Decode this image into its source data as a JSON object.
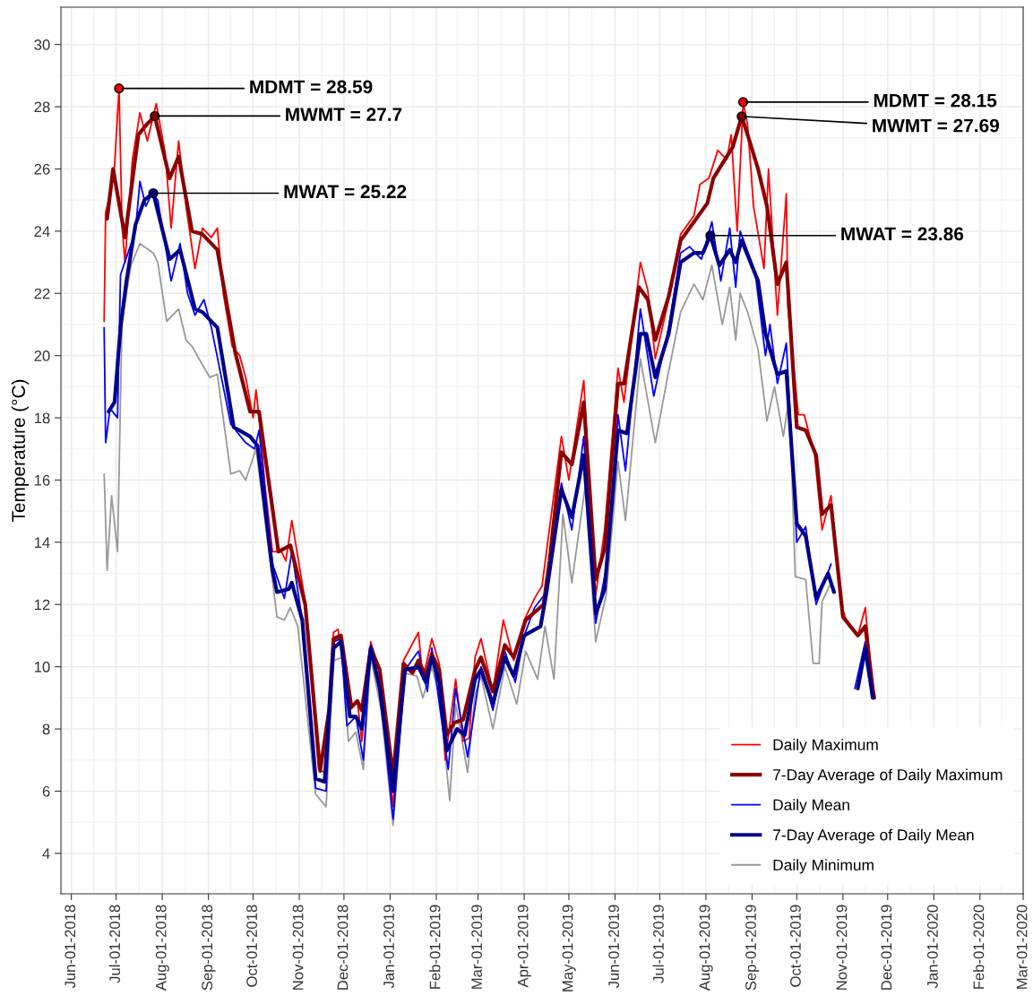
{
  "chart_data": {
    "type": "line",
    "ylabel": "Temperature (°C)",
    "xlim": [
      "2018-05-25",
      "2020-03-01"
    ],
    "ylim": [
      2.7,
      31.2
    ],
    "yticks": [
      4,
      6,
      8,
      10,
      12,
      14,
      16,
      18,
      20,
      22,
      24,
      26,
      28,
      30
    ],
    "xticks": [
      {
        "value": "2018-06-01",
        "label": "Jun-01-2018"
      },
      {
        "value": "2018-07-01",
        "label": "Jul-01-2018"
      },
      {
        "value": "2018-08-01",
        "label": "Aug-01-2018"
      },
      {
        "value": "2018-09-01",
        "label": "Sep-01-2018"
      },
      {
        "value": "2018-10-01",
        "label": "Oct-01-2018"
      },
      {
        "value": "2018-11-01",
        "label": "Nov-01-2018"
      },
      {
        "value": "2018-12-01",
        "label": "Dec-01-2018"
      },
      {
        "value": "2019-01-01",
        "label": "Jan-01-2019"
      },
      {
        "value": "2019-02-01",
        "label": "Feb-01-2019"
      },
      {
        "value": "2019-03-01",
        "label": "Mar-01-2019"
      },
      {
        "value": "2019-04-01",
        "label": "Apr-01-2019"
      },
      {
        "value": "2019-05-01",
        "label": "May-01-2019"
      },
      {
        "value": "2019-06-01",
        "label": "Jun-01-2019"
      },
      {
        "value": "2019-07-01",
        "label": "Jul-01-2019"
      },
      {
        "value": "2019-08-01",
        "label": "Aug-01-2019"
      },
      {
        "value": "2019-09-01",
        "label": "Sep-01-2019"
      },
      {
        "value": "2019-10-01",
        "label": "Oct-01-2019"
      },
      {
        "value": "2019-11-01",
        "label": "Nov-01-2019"
      },
      {
        "value": "2019-12-01",
        "label": "Dec-01-2019"
      },
      {
        "value": "2020-01-01",
        "label": "Jan-01-2020"
      },
      {
        "value": "2020-02-01",
        "label": "Feb-01-2020"
      },
      {
        "value": "2020-03-01",
        "label": "Mar-01-2020"
      }
    ],
    "grid": true,
    "legend": "bottom right",
    "line_style": "solid",
    "marker": "none",
    "series": [
      {
        "name": "Daily Maximum",
        "color": "#ff0000",
        "x": [
          "2018-06-23",
          "2018-06-24",
          "2018-06-27",
          "2018-06-30",
          "2018-07-03",
          "2018-07-05",
          "2018-07-07",
          "2018-07-12",
          "2018-07-17",
          "2018-07-22",
          "2018-07-28",
          "2018-08-03",
          "2018-08-07",
          "2018-08-12",
          "2018-08-17",
          "2018-08-23",
          "2018-08-28",
          "2018-09-03",
          "2018-09-07",
          "2018-09-11",
          "2018-09-17",
          "2018-09-22",
          "2018-09-26",
          "2018-10-01",
          "2018-10-03",
          "2018-10-05",
          "2018-10-09",
          "2018-10-14",
          "2018-10-20",
          "2018-10-23",
          "2018-10-27",
          "2018-11-05",
          "2018-11-14",
          "2018-11-18",
          "2018-11-24",
          "2018-11-27",
          "2018-12-05",
          "2018-12-10",
          "2018-12-13",
          "2018-12-19",
          "2018-12-25",
          "2019-01-03",
          "2019-01-10",
          "2019-01-20",
          "2019-01-23",
          "2019-01-29",
          "2019-02-03",
          "2019-02-07",
          "2019-02-14",
          "2019-02-19",
          "2019-02-23",
          "2019-02-27",
          "2019-03-03",
          "2019-03-11",
          "2019-03-18",
          "2019-03-25",
          "2019-04-01",
          "2019-04-08",
          "2019-04-13",
          "2019-04-26",
          "2019-05-01",
          "2019-05-11",
          "2019-05-19",
          "2019-05-25",
          "2019-06-03",
          "2019-06-07",
          "2019-06-18",
          "2019-06-23",
          "2019-06-28",
          "2019-07-07",
          "2019-07-15",
          "2019-07-24",
          "2019-07-28",
          "2019-08-03",
          "2019-08-09",
          "2019-08-15",
          "2019-08-18",
          "2019-08-22",
          "2019-08-26",
          "2019-08-29",
          "2019-09-02",
          "2019-09-09",
          "2019-09-12",
          "2019-09-18",
          "2019-09-24",
          "2019-09-25",
          "2019-10-02",
          "2019-10-06",
          "2019-10-13",
          "2019-10-18",
          "2019-10-24",
          "2019-10-31",
          "2019-11-05",
          "2019-11-11",
          "2019-11-16",
          "2019-11-21"
        ],
        "values": [
          21.1,
          24.6,
          25.2,
          26.1,
          28.59,
          24.2,
          23.0,
          26.3,
          27.8,
          26.9,
          28.1,
          26.5,
          24.1,
          26.9,
          24.8,
          22.8,
          24.1,
          23.8,
          24.1,
          22.0,
          20.3,
          20.0,
          19.3,
          18.0,
          18.9,
          18.0,
          15.8,
          13.7,
          13.7,
          13.4,
          14.7,
          12.1,
          6.7,
          6.6,
          11.1,
          11.2,
          8.6,
          8.9,
          7.6,
          10.8,
          9.8,
          5.5,
          10.2,
          11.1,
          9.6,
          10.9,
          10.1,
          7.0,
          9.6,
          7.6,
          7.7,
          10.3,
          10.9,
          9.2,
          11.5,
          10.2,
          11.5,
          12.2,
          12.6,
          17.4,
          16.0,
          19.2,
          12.3,
          14.4,
          19.6,
          18.5,
          23.0,
          22.1,
          19.9,
          21.8,
          23.9,
          24.5,
          25.5,
          25.7,
          26.6,
          26.3,
          27.1,
          24.0,
          28.15,
          27.4,
          24.8,
          22.8,
          26.0,
          21.3,
          25.2,
          21.6,
          18.1,
          18.1,
          16.8,
          14.4,
          15.5,
          11.9,
          11.3,
          11.0,
          11.9,
          9.3
        ]
      },
      {
        "name": "7-Day Average of Daily Maximum",
        "color": "#8b0000",
        "x": [
          "2018-06-25",
          "2018-06-29",
          "2018-07-07",
          "2018-07-16",
          "2018-07-21",
          "2018-07-27",
          "2018-08-06",
          "2018-08-12",
          "2018-08-21",
          "2018-08-28",
          "2018-09-07",
          "2018-09-19",
          "2018-09-29",
          "2018-10-05",
          "2018-10-18",
          "2018-10-26",
          "2018-11-05",
          "2018-11-15",
          "2018-11-21",
          "2018-11-24",
          "2018-11-29",
          "2018-12-06",
          "2018-12-10",
          "2018-12-13",
          "2018-12-19",
          "2018-12-25",
          "2019-01-03",
          "2019-01-10",
          "2019-01-16",
          "2019-01-20",
          "2019-01-25",
          "2019-01-29",
          "2019-02-03",
          "2019-02-08",
          "2019-02-13",
          "2019-02-19",
          "2019-02-27",
          "2019-03-03",
          "2019-03-11",
          "2019-03-19",
          "2019-03-25",
          "2019-04-02",
          "2019-04-14",
          "2019-04-18",
          "2019-04-26",
          "2019-05-03",
          "2019-05-11",
          "2019-05-19",
          "2019-05-25",
          "2019-06-03",
          "2019-06-07",
          "2019-06-17",
          "2019-06-23",
          "2019-06-28",
          "2019-07-07",
          "2019-07-15",
          "2019-07-24",
          "2019-08-02",
          "2019-08-06",
          "2019-08-15",
          "2019-08-19",
          "2019-08-25",
          "2019-08-29",
          "2019-09-05",
          "2019-09-11",
          "2019-09-18",
          "2019-09-24",
          "2019-10-01",
          "2019-10-07",
          "2019-10-14",
          "2019-10-18",
          "2019-10-24",
          "2019-11-01",
          "2019-11-11",
          "2019-11-16",
          "2019-11-21",
          "2019-11-22"
        ],
        "values": [
          24.4,
          26.0,
          23.8,
          27.1,
          27.4,
          27.7,
          25.7,
          26.4,
          24.0,
          23.9,
          23.4,
          20.1,
          18.2,
          18.2,
          13.7,
          13.9,
          12.0,
          6.65,
          8.6,
          10.9,
          11.0,
          8.7,
          8.9,
          8.6,
          10.6,
          9.9,
          6.5,
          10.1,
          9.8,
          10.2,
          9.7,
          10.4,
          9.9,
          7.8,
          8.2,
          8.3,
          9.9,
          10.3,
          9.2,
          10.7,
          10.3,
          11.5,
          12.0,
          13.4,
          16.9,
          16.5,
          18.5,
          12.8,
          13.8,
          19.1,
          19.1,
          22.2,
          21.8,
          20.5,
          21.9,
          23.7,
          24.3,
          24.9,
          25.7,
          26.4,
          26.7,
          27.69,
          27.1,
          26.0,
          24.8,
          22.3,
          23.0,
          17.7,
          17.6,
          16.8,
          14.9,
          15.2,
          11.6,
          11.0,
          11.3,
          9.3,
          9.0
        ]
      },
      {
        "name": "Daily Mean",
        "color": "#0000ff",
        "x": [
          "2018-06-23",
          "2018-06-24",
          "2018-06-27",
          "2018-07-02",
          "2018-07-04",
          "2018-07-14",
          "2018-07-17",
          "2018-07-21",
          "2018-07-25",
          "2018-07-29",
          "2018-08-07",
          "2018-08-13",
          "2018-08-18",
          "2018-08-23",
          "2018-08-29",
          "2018-09-03",
          "2018-09-16",
          "2018-09-26",
          "2018-10-02",
          "2018-10-05",
          "2018-10-14",
          "2018-10-22",
          "2018-10-27",
          "2018-11-03",
          "2018-11-12",
          "2018-11-19",
          "2018-11-24",
          "2018-11-29",
          "2018-12-03",
          "2018-12-09",
          "2018-12-14",
          "2018-12-19",
          "2018-12-25",
          "2019-01-03",
          "2019-01-11",
          "2019-01-20",
          "2019-01-26",
          "2019-01-29",
          "2019-02-09",
          "2019-02-14",
          "2019-02-22",
          "2019-03-03",
          "2019-03-11",
          "2019-03-19",
          "2019-03-26",
          "2019-04-01",
          "2019-04-08",
          "2019-04-16",
          "2019-04-26",
          "2019-05-03",
          "2019-05-11",
          "2019-05-19",
          "2019-05-27",
          "2019-06-03",
          "2019-06-08",
          "2019-06-18",
          "2019-06-27",
          "2019-07-07",
          "2019-07-15",
          "2019-07-21",
          "2019-07-29",
          "2019-08-05",
          "2019-08-11",
          "2019-08-17",
          "2019-08-21",
          "2019-08-24",
          "2019-09-03",
          "2019-09-10",
          "2019-09-13",
          "2019-09-18",
          "2019-09-24",
          "2019-10-01",
          "2019-10-07",
          "2019-10-14",
          "2019-10-24",
          "2019-10-30",
          "2019-11-04",
          "2019-11-09",
          "2019-11-16",
          "2019-11-20"
        ],
        "values": [
          20.9,
          17.2,
          18.3,
          18.0,
          22.6,
          24.0,
          25.6,
          24.8,
          25.2,
          25.0,
          22.4,
          23.6,
          22.0,
          21.3,
          21.8,
          20.9,
          17.8,
          17.2,
          17.0,
          17.6,
          13.3,
          12.2,
          13.7,
          11.5,
          6.1,
          6.0,
          10.8,
          10.9,
          8.1,
          8.4,
          7.0,
          10.7,
          9.4,
          5.1,
          9.9,
          10.5,
          9.2,
          10.6,
          6.7,
          9.3,
          7.1,
          10.0,
          8.6,
          10.5,
          9.5,
          11.0,
          11.9,
          12.4,
          15.9,
          14.4,
          17.4,
          11.4,
          13.4,
          18.1,
          16.3,
          21.5,
          18.7,
          20.9,
          23.3,
          23.5,
          23.1,
          24.3,
          22.4,
          24.1,
          22.2,
          24.0,
          22.7,
          20.0,
          21.0,
          19.1,
          20.4,
          14.0,
          14.5,
          12.0,
          13.3,
          null,
          null,
          9.3,
          10.8,
          9.9
        ]
      },
      {
        "name": "7-Day Average of Daily Mean",
        "color": "#00008b",
        "x": [
          "2018-06-26",
          "2018-06-30",
          "2018-07-04",
          "2018-07-08",
          "2018-07-14",
          "2018-07-20",
          "2018-07-26",
          "2018-08-06",
          "2018-08-13",
          "2018-08-23",
          "2018-08-28",
          "2018-09-07",
          "2018-09-18",
          "2018-09-29",
          "2018-10-04",
          "2018-10-14",
          "2018-10-17",
          "2018-10-25",
          "2018-10-27",
          "2018-11-03",
          "2018-11-12",
          "2018-11-18",
          "2018-11-24",
          "2018-11-29",
          "2018-12-05",
          "2018-12-09",
          "2018-12-13",
          "2018-12-19",
          "2018-12-25",
          "2019-01-03",
          "2019-01-11",
          "2019-01-20",
          "2019-01-25",
          "2019-01-29",
          "2019-02-03",
          "2019-02-08",
          "2019-02-15",
          "2019-02-20",
          "2019-02-27",
          "2019-03-03",
          "2019-03-11",
          "2019-03-19",
          "2019-03-25",
          "2019-04-01",
          "2019-04-12",
          "2019-04-16",
          "2019-04-26",
          "2019-05-03",
          "2019-05-11",
          "2019-05-19",
          "2019-05-25",
          "2019-06-03",
          "2019-06-09",
          "2019-06-18",
          "2019-06-22",
          "2019-06-28",
          "2019-07-07",
          "2019-07-15",
          "2019-07-24",
          "2019-07-30",
          "2019-08-04",
          "2019-08-10",
          "2019-08-17",
          "2019-08-21",
          "2019-08-25",
          "2019-09-05",
          "2019-09-10",
          "2019-09-18",
          "2019-09-24",
          "2019-10-01",
          "2019-10-07",
          "2019-10-14",
          "2019-10-22",
          "2019-10-26",
          "2019-10-31",
          "2019-11-04",
          "2019-11-11",
          "2019-11-16",
          "2019-11-21"
        ],
        "values": [
          18.2,
          18.5,
          20.9,
          22.4,
          24.2,
          25.0,
          25.22,
          23.1,
          23.4,
          21.5,
          21.4,
          20.9,
          17.7,
          17.4,
          17.1,
          13.1,
          12.4,
          12.5,
          12.7,
          11.5,
          6.4,
          6.3,
          10.6,
          10.8,
          8.4,
          8.4,
          8.0,
          10.6,
          9.3,
          6.0,
          9.9,
          10.0,
          9.5,
          10.3,
          9.5,
          7.3,
          8.0,
          7.8,
          9.6,
          9.9,
          8.8,
          10.3,
          9.7,
          11.0,
          11.3,
          12.4,
          15.7,
          14.8,
          16.8,
          11.7,
          12.5,
          17.6,
          17.5,
          20.7,
          20.7,
          19.3,
          20.7,
          23.0,
          23.3,
          23.3,
          23.86,
          22.9,
          23.4,
          23.0,
          23.7,
          22.4,
          20.7,
          19.4,
          19.5,
          14.6,
          14.2,
          12.2,
          13.0,
          12.4,
          null,
          null,
          9.3,
          10.6,
          9.0
        ]
      },
      {
        "name": "Daily Minimum",
        "color": "#999999",
        "x": [
          "2018-06-23",
          "2018-06-25",
          "2018-06-28",
          "2018-07-02",
          "2018-07-05",
          "2018-07-11",
          "2018-07-17",
          "2018-07-26",
          "2018-07-29",
          "2018-08-04",
          "2018-08-12",
          "2018-08-17",
          "2018-08-21",
          "2018-08-28",
          "2018-09-02",
          "2018-09-07",
          "2018-09-16",
          "2018-09-22",
          "2018-09-26",
          "2018-10-03",
          "2018-10-07",
          "2018-10-17",
          "2018-10-22",
          "2018-10-26",
          "2018-10-31",
          "2018-11-12",
          "2018-11-19",
          "2018-11-24",
          "2018-11-30",
          "2018-12-04",
          "2018-12-09",
          "2018-12-14",
          "2018-12-19",
          "2018-12-26",
          "2019-01-03",
          "2019-01-11",
          "2019-01-19",
          "2019-01-23",
          "2019-01-29",
          "2019-02-03",
          "2019-02-10",
          "2019-02-14",
          "2019-02-22",
          "2019-02-27",
          "2019-03-03",
          "2019-03-11",
          "2019-03-19",
          "2019-03-27",
          "2019-04-02",
          "2019-04-10",
          "2019-04-15",
          "2019-04-21",
          "2019-04-27",
          "2019-05-03",
          "2019-05-12",
          "2019-05-19",
          "2019-05-26",
          "2019-06-03",
          "2019-06-08",
          "2019-06-18",
          "2019-06-28",
          "2019-07-07",
          "2019-07-15",
          "2019-07-24",
          "2019-07-30",
          "2019-08-05",
          "2019-08-12",
          "2019-08-17",
          "2019-08-21",
          "2019-08-24",
          "2019-08-29",
          "2019-09-05",
          "2019-09-11",
          "2019-09-16",
          "2019-09-22",
          "2019-09-26",
          "2019-09-30",
          "2019-10-07",
          "2019-10-12",
          "2019-10-16",
          "2019-10-18",
          "2019-10-23",
          "2019-10-29",
          "2019-11-16",
          "2019-11-19"
        ],
        "values": [
          16.2,
          13.1,
          15.5,
          13.7,
          21.1,
          22.9,
          23.6,
          23.3,
          23.0,
          21.1,
          21.5,
          20.5,
          20.3,
          19.7,
          19.3,
          19.4,
          16.2,
          16.3,
          16.0,
          17.0,
          15.5,
          11.6,
          11.5,
          11.9,
          11.3,
          5.9,
          5.5,
          10.2,
          10.3,
          7.6,
          7.9,
          6.7,
          10.3,
          8.6,
          4.9,
          9.8,
          9.7,
          9.0,
          10.0,
          9.1,
          5.7,
          8.8,
          6.6,
          9.1,
          9.7,
          8.0,
          10.0,
          8.8,
          10.5,
          9.6,
          11.3,
          9.6,
          14.9,
          12.7,
          15.8,
          10.8,
          12.3,
          16.6,
          14.7,
          19.9,
          17.2,
          19.5,
          21.4,
          22.3,
          21.8,
          22.9,
          21.0,
          22.2,
          20.5,
          22.0,
          21.4,
          20.2,
          17.9,
          19.0,
          17.4,
          18.7,
          12.9,
          12.8,
          10.1,
          10.1,
          12.1,
          12.6,
          null,
          10.3,
          9.5
        ]
      }
    ],
    "annotations": [
      {
        "text": "MDMT = 28.59",
        "x": "2018-07-03",
        "y": 28.59
      },
      {
        "text": "MWMT = 27.7",
        "x": "2018-07-27",
        "y": 27.7
      },
      {
        "text": "MWAT = 25.22",
        "x": "2018-07-26",
        "y": 25.22
      },
      {
        "text": "MDMT = 28.15",
        "x": "2019-08-26",
        "y": 28.15
      },
      {
        "text": "MWMT = 27.69",
        "x": "2019-08-25",
        "y": 27.69
      },
      {
        "text": "MWAT = 23.86",
        "x": "2019-08-04",
        "y": 23.86
      }
    ]
  }
}
